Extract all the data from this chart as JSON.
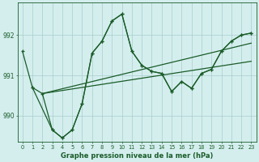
{
  "xlabel": "Graphe pression niveau de la mer (hPa)",
  "bg_color": "#d4eeee",
  "grid_color": "#aacccc",
  "line_color": "#1a5c28",
  "xlim": [
    -0.5,
    23.5
  ],
  "ylim": [
    989.35,
    992.8
  ],
  "yticks": [
    990,
    991,
    992
  ],
  "xticks": [
    0,
    1,
    2,
    3,
    4,
    5,
    6,
    7,
    8,
    9,
    10,
    11,
    12,
    13,
    14,
    15,
    16,
    17,
    18,
    19,
    20,
    21,
    22,
    23
  ],
  "trend1_x": [
    2,
    23
  ],
  "trend1_y": [
    990.55,
    991.8
  ],
  "trend2_x": [
    2,
    23
  ],
  "trend2_y": [
    990.55,
    991.35
  ],
  "line_zigzag_x": [
    1,
    2,
    3,
    4,
    5,
    6,
    7,
    8,
    9,
    10,
    11,
    12,
    13,
    14,
    15,
    16,
    17,
    18,
    19,
    20,
    21,
    22,
    23
  ],
  "line_zigzag_y": [
    990.7,
    990.55,
    989.65,
    989.45,
    989.65,
    990.3,
    991.55,
    991.85,
    992.35,
    992.52,
    991.6,
    991.25,
    991.1,
    991.05,
    990.6,
    990.85,
    990.68,
    991.05,
    991.15,
    991.6,
    991.85,
    992.0,
    992.05
  ],
  "line_topstart_x": [
    0,
    1,
    3,
    4,
    5,
    6,
    7,
    8,
    9,
    10,
    11,
    12,
    13,
    14,
    15,
    16,
    17,
    18,
    19,
    20,
    21,
    22,
    23
  ],
  "line_topstart_y": [
    991.6,
    990.7,
    989.65,
    989.45,
    989.65,
    990.3,
    991.55,
    991.85,
    992.35,
    992.52,
    991.6,
    991.25,
    991.1,
    991.05,
    990.6,
    990.85,
    990.68,
    991.05,
    991.15,
    991.6,
    991.85,
    992.0,
    992.05
  ]
}
